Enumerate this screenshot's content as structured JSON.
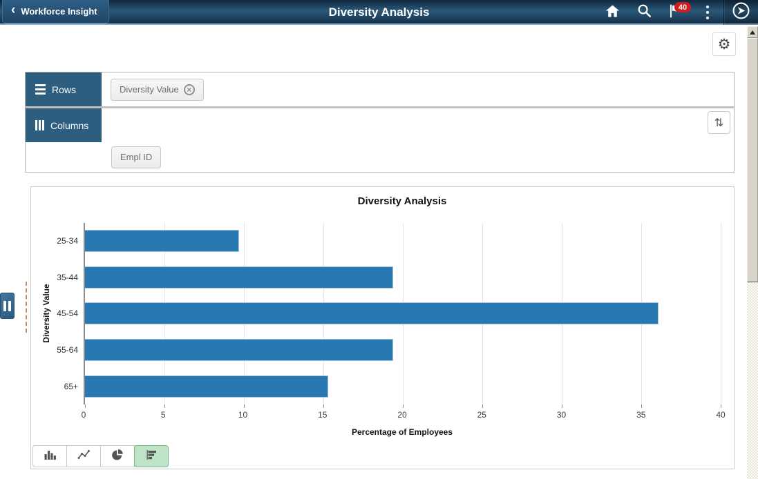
{
  "header": {
    "back_label": "Workforce Insight",
    "title": "Diversity Analysis",
    "notification_count": "40"
  },
  "icons": {
    "back_chevron": "‹",
    "gear": "⚙",
    "sort": "⇅",
    "remove": "×"
  },
  "pivot": {
    "rows_label": "Rows",
    "columns_label": "Columns",
    "row_chips": [
      {
        "label": "Diversity Value",
        "removable": true
      }
    ],
    "column_chips": [
      {
        "label": "Empl ID"
      }
    ]
  },
  "chart_data": {
    "type": "bar",
    "orientation": "horizontal",
    "title": "Diversity Analysis",
    "categories": [
      "25-34",
      "35-44",
      "45-54",
      "55-64",
      "65+"
    ],
    "values": [
      9.7,
      19.4,
      36.1,
      19.4,
      15.3
    ],
    "xlabel": "Percentage of Employees",
    "ylabel": "Diversity Value",
    "xlim": [
      0,
      40
    ],
    "x_ticks": [
      0,
      5,
      10,
      15,
      20,
      25,
      30,
      35,
      40
    ],
    "grid": true,
    "bar_color": "#2878b2"
  },
  "chart_toolbar": {
    "types": [
      {
        "name": "vertical-bar",
        "selected": false
      },
      {
        "name": "line",
        "selected": false
      },
      {
        "name": "pie",
        "selected": false
      },
      {
        "name": "horizontal-bar",
        "selected": true
      }
    ]
  },
  "colors": {
    "header_accent": "#8fb3cf",
    "pivot_header": "#2d5e80",
    "bar": "#2878b2",
    "selected_type_bg": "#bfe3c6",
    "badge": "#cf1d1d"
  }
}
